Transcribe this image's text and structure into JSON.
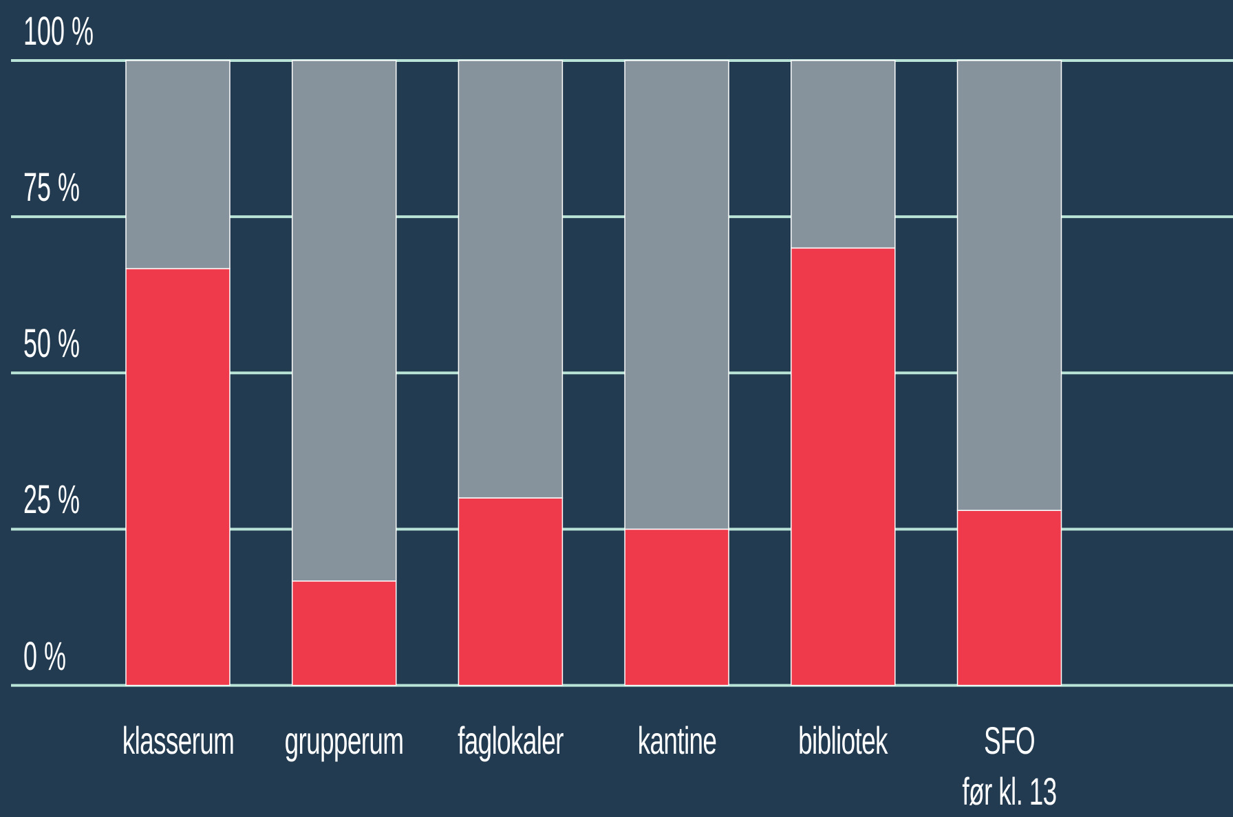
{
  "chart_data": {
    "type": "stacked_bar",
    "categories": [
      "klasserum",
      "grupperum",
      "faglokaler",
      "kantine",
      "bibliotek",
      "SFO\nfør kl. 13"
    ],
    "series": [
      {
        "color": "#ee3a4b",
        "values": [
          66.7,
          16.7,
          30,
          25,
          70,
          28
        ]
      },
      {
        "color": "#87939c",
        "values": [
          33.3,
          83.3,
          70,
          75,
          30,
          72
        ]
      }
    ],
    "ylim": [
      0,
      100
    ],
    "yticks": [
      {
        "value": 0,
        "label": "0 %"
      },
      {
        "value": 25,
        "label": "25 %"
      },
      {
        "value": 50,
        "label": "50 %"
      },
      {
        "value": 75,
        "label": "75 %"
      },
      {
        "value": 100,
        "label": "100 %"
      }
    ],
    "grid": true
  }
}
